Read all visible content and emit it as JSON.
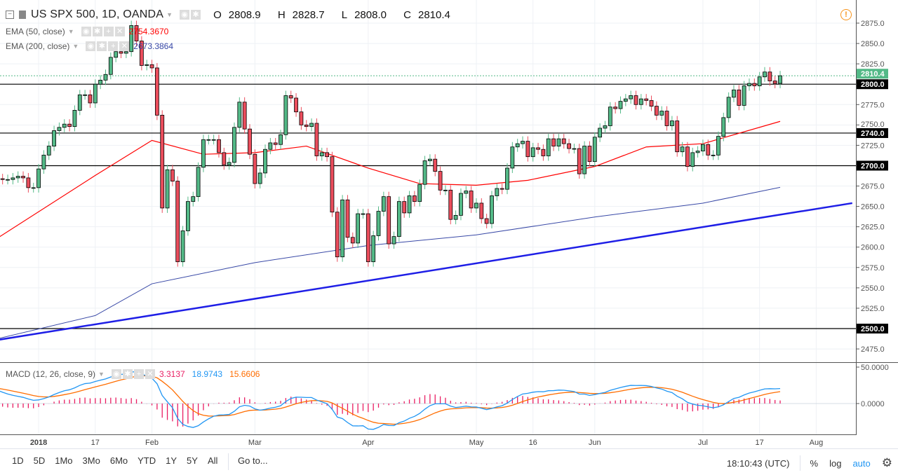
{
  "header": {
    "symbol": "US SPX 500, 1D, OANDA",
    "o_label": "O",
    "o": "2808.9",
    "h_label": "H",
    "h": "2828.7",
    "l_label": "L",
    "l": "2808.0",
    "c_label": "C",
    "c": "2810.4"
  },
  "indicators": {
    "ema50": {
      "label": "EMA (50, close)",
      "value": "2754.3670",
      "color": "#ff0000"
    },
    "ema200": {
      "label": "EMA (200, close)",
      "value": "2673.3864",
      "color": "#3848a6"
    },
    "macd": {
      "label": "MACD (12, 26, close, 9)",
      "hist": "3.3137",
      "macd": "18.9743",
      "signal": "15.6606",
      "hist_color": "#e91e63",
      "macd_color": "#2196f3",
      "signal_color": "#ff6d00"
    }
  },
  "price_axis": {
    "ticks": [
      "2475.0",
      "2500.0",
      "2525.0",
      "2550.0",
      "2575.0",
      "2600.0",
      "2625.0",
      "2650.0",
      "2675.0",
      "2700.0",
      "2725.0",
      "2750.0",
      "2775.0",
      "2800.0",
      "2825.0",
      "2850.0",
      "2875.0"
    ],
    "tick_values": [
      2475,
      2500,
      2525,
      2550,
      2575,
      2600,
      2625,
      2650,
      2675,
      2700,
      2725,
      2750,
      2775,
      2800,
      2825,
      2850,
      2875
    ],
    "last_price": {
      "value": 2810.4,
      "label": "2810.4",
      "color": "#53b987"
    },
    "levels": [
      {
        "value": 2800,
        "label": "2800.0"
      },
      {
        "value": 2740,
        "label": "2740.0"
      },
      {
        "value": 2700,
        "label": "2700.0"
      },
      {
        "value": 2500,
        "label": "2500.0"
      }
    ]
  },
  "macd_axis": {
    "ticks": [
      "50.0000",
      "0.0000"
    ],
    "tick_values": [
      50,
      0
    ]
  },
  "time_axis": {
    "labels": [
      {
        "date": "2018-01-02",
        "label": "2018",
        "bold": true
      },
      {
        "date": "2018-01-17",
        "label": "17"
      },
      {
        "date": "2018-02-01",
        "label": "Feb"
      },
      {
        "date": "2018-03-01",
        "label": "Mar"
      },
      {
        "date": "2018-04-02",
        "label": "Apr"
      },
      {
        "date": "2018-05-01",
        "label": "May"
      },
      {
        "date": "2018-05-16",
        "label": "16"
      },
      {
        "date": "2018-06-01",
        "label": "Jun"
      },
      {
        "date": "2018-07-02",
        "label": "Jul"
      },
      {
        "date": "2018-07-17",
        "label": "17"
      },
      {
        "date": "2018-08-01",
        "label": "Aug"
      }
    ]
  },
  "toolbar": {
    "ranges": [
      "1D",
      "5D",
      "1Mo",
      "3Mo",
      "6Mo",
      "YTD",
      "1Y",
      "5Y",
      "All"
    ],
    "goto": "Go to...",
    "clock": "18:10:43 (UTC)",
    "percent": "%",
    "log": "log",
    "auto": "auto",
    "settings_icon": "gear-icon"
  },
  "chart_data": {
    "type": "candlestick",
    "interval": "1D",
    "start_date": "2017-12-20",
    "ylim": [
      2462,
      2890
    ],
    "up_color": "#53b987",
    "down_color": "#eb4d5c",
    "close": [
      2683,
      2684,
      2683,
      2683,
      2685,
      2687,
      2685,
      2673,
      2673,
      2696,
      2713,
      2724,
      2743,
      2747,
      2751,
      2748,
      2768,
      2787,
      2787,
      2777,
      2800,
      2805,
      2812,
      2833,
      2840,
      2838,
      2840,
      2872,
      2853,
      2823,
      2824,
      2820,
      2762,
      2648,
      2695,
      2681,
      2582,
      2620,
      2656,
      2662,
      2698,
      2732,
      2732,
      2732,
      2716,
      2701,
      2704,
      2747,
      2778,
      2745,
      2714,
      2678,
      2691,
      2720,
      2728,
      2726,
      2738,
      2786,
      2783,
      2766,
      2750,
      2748,
      2752,
      2712,
      2716,
      2711,
      2643,
      2588,
      2658,
      2612,
      2605,
      2641,
      2641,
      2582,
      2614,
      2644,
      2662,
      2604,
      2613,
      2656,
      2642,
      2663,
      2656,
      2677,
      2706,
      2708,
      2693,
      2670,
      2670,
      2634,
      2639,
      2666,
      2669,
      2648,
      2654,
      2635,
      2629,
      2663,
      2672,
      2671,
      2697,
      2723,
      2727,
      2730,
      2711,
      2722,
      2720,
      2712,
      2733,
      2724,
      2733,
      2727,
      2721,
      2721,
      2690,
      2724,
      2705,
      2735,
      2746,
      2749,
      2772,
      2770,
      2779,
      2782,
      2786,
      2775,
      2782,
      2780,
      2773,
      2762,
      2767,
      2749,
      2755,
      2717,
      2723,
      2699,
      2716,
      2718,
      2726,
      2713,
      2713,
      2736,
      2759,
      2784,
      2793,
      2774,
      2798,
      2801,
      2798,
      2809,
      2815,
      2804,
      2801,
      2810.4
    ],
    "ema50": [
      [
        "2017-12-20",
        2607
      ],
      [
        "2018-01-17",
        2688
      ],
      [
        "2018-02-01",
        2731
      ],
      [
        "2018-02-15",
        2714
      ],
      [
        "2018-03-01",
        2716
      ],
      [
        "2018-03-15",
        2724
      ],
      [
        "2018-04-02",
        2697
      ],
      [
        "2018-04-16",
        2678
      ],
      [
        "2018-05-01",
        2676
      ],
      [
        "2018-05-15",
        2682
      ],
      [
        "2018-06-01",
        2699
      ],
      [
        "2018-06-15",
        2723
      ],
      [
        "2018-07-02",
        2727
      ],
      [
        "2018-07-23",
        2754.367
      ]
    ],
    "ema200": [
      [
        "2017-12-20",
        2486
      ],
      [
        "2018-01-17",
        2516
      ],
      [
        "2018-02-01",
        2555
      ],
      [
        "2018-03-01",
        2581
      ],
      [
        "2018-04-02",
        2602
      ],
      [
        "2018-05-01",
        2615
      ],
      [
        "2018-06-01",
        2637
      ],
      [
        "2018-07-02",
        2654
      ],
      [
        "2018-07-23",
        2673.3864
      ]
    ],
    "trendline": {
      "from": [
        "2017-12-21",
        2486
      ],
      "to": [
        "2018-08-10",
        2654
      ],
      "color": "#1e1ee6"
    },
    "macd_ylim": [
      -40,
      60
    ]
  }
}
